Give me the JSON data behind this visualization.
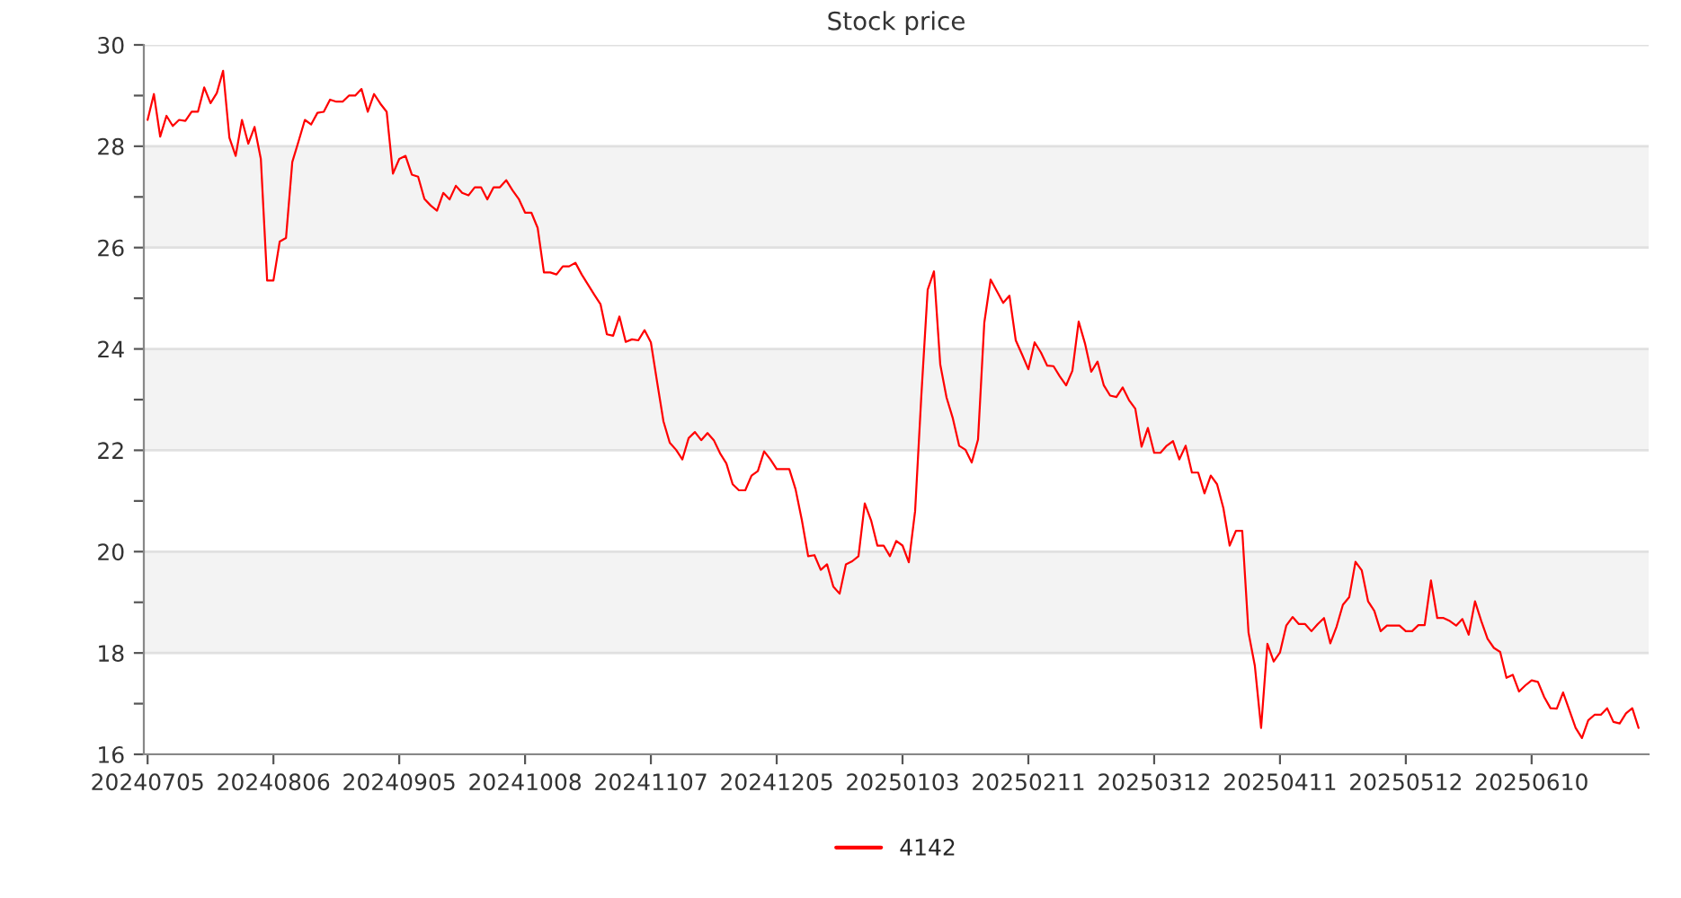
{
  "chart_data": {
    "type": "line",
    "title": "Stock price",
    "categories": [
      "20240705",
      null,
      null,
      null,
      null,
      null,
      null,
      null,
      null,
      null,
      null,
      null,
      null,
      null,
      null,
      null,
      null,
      null,
      null,
      null,
      "20240806",
      null,
      null,
      null,
      null,
      null,
      null,
      null,
      null,
      null,
      null,
      null,
      null,
      null,
      null,
      null,
      null,
      null,
      null,
      null,
      "20240905",
      null,
      null,
      null,
      null,
      null,
      null,
      null,
      null,
      null,
      null,
      null,
      null,
      null,
      null,
      null,
      null,
      null,
      null,
      null,
      "20241008",
      null,
      null,
      null,
      null,
      null,
      null,
      null,
      null,
      null,
      null,
      null,
      null,
      null,
      null,
      null,
      null,
      null,
      null,
      null,
      "20241107",
      null,
      null,
      null,
      null,
      null,
      null,
      null,
      null,
      null,
      null,
      null,
      null,
      null,
      null,
      null,
      null,
      null,
      null,
      null,
      "20241205",
      null,
      null,
      null,
      null,
      null,
      null,
      null,
      null,
      null,
      null,
      null,
      null,
      null,
      null,
      null,
      null,
      null,
      null,
      null,
      "20250103",
      null,
      null,
      null,
      null,
      null,
      null,
      null,
      null,
      null,
      null,
      null,
      null,
      null,
      null,
      null,
      null,
      null,
      null,
      null,
      "20250211",
      null,
      null,
      null,
      null,
      null,
      null,
      null,
      null,
      null,
      null,
      null,
      null,
      null,
      null,
      null,
      null,
      null,
      null,
      null,
      "20250312",
      null,
      null,
      null,
      null,
      null,
      null,
      null,
      null,
      null,
      null,
      null,
      null,
      null,
      null,
      null,
      null,
      null,
      null,
      null,
      "20250411",
      null,
      null,
      null,
      null,
      null,
      null,
      null,
      null,
      null,
      null,
      null,
      null,
      null,
      null,
      null,
      null,
      null,
      null,
      null,
      "20250512",
      null,
      null,
      null,
      null,
      null,
      null,
      null,
      null,
      null,
      null,
      null,
      null,
      null,
      null,
      null,
      null,
      null,
      null,
      null,
      "20250610",
      null,
      null,
      null,
      null,
      null,
      null,
      null,
      null,
      null,
      null,
      null,
      null,
      null,
      null,
      null,
      null,
      null
    ],
    "series": [
      {
        "name": "4142",
        "color": "#ff0000",
        "values": [
          28.52,
          29.03,
          28.19,
          28.6,
          28.4,
          28.52,
          28.5,
          28.68,
          28.68,
          29.16,
          28.85,
          29.05,
          29.49,
          28.17,
          27.81,
          28.52,
          28.05,
          28.38,
          27.75,
          25.35,
          25.35,
          26.12,
          26.19,
          27.69,
          28.1,
          28.52,
          28.43,
          28.66,
          28.68,
          28.92,
          28.88,
          28.88,
          29.0,
          29.0,
          29.13,
          28.68,
          29.03,
          28.84,
          28.68,
          27.46,
          27.75,
          27.81,
          27.44,
          27.4,
          26.96,
          26.83,
          26.73,
          27.08,
          26.95,
          27.22,
          27.08,
          27.03,
          27.19,
          27.19,
          26.95,
          27.19,
          27.19,
          27.33,
          27.13,
          26.96,
          26.69,
          26.69,
          26.39,
          25.51,
          25.51,
          25.47,
          25.63,
          25.63,
          25.7,
          25.47,
          25.27,
          25.07,
          24.88,
          24.29,
          24.26,
          24.64,
          24.14,
          24.19,
          24.17,
          24.37,
          24.13,
          23.34,
          22.57,
          22.15,
          22.01,
          21.82,
          22.24,
          22.36,
          22.2,
          22.34,
          22.2,
          21.94,
          21.74,
          21.33,
          21.21,
          21.21,
          21.5,
          21.59,
          21.98,
          21.82,
          21.63,
          21.63,
          21.63,
          21.23,
          20.62,
          19.91,
          19.93,
          19.64,
          19.75,
          19.31,
          19.17,
          19.75,
          19.81,
          19.91,
          20.95,
          20.62,
          20.12,
          20.12,
          19.91,
          20.21,
          20.12,
          19.79,
          20.8,
          23.1,
          25.17,
          25.53,
          23.69,
          23.04,
          22.63,
          22.09,
          22.01,
          21.76,
          22.21,
          24.52,
          25.37,
          25.14,
          24.91,
          25.05,
          24.17,
          23.89,
          23.6,
          24.13,
          23.93,
          23.67,
          23.66,
          23.46,
          23.28,
          23.57,
          24.54,
          24.11,
          23.55,
          23.75,
          23.28,
          23.08,
          23.05,
          23.24,
          22.99,
          22.82,
          22.07,
          22.44,
          21.95,
          21.95,
          22.09,
          22.18,
          21.82,
          22.09,
          21.56,
          21.56,
          21.15,
          21.5,
          21.33,
          20.86,
          20.12,
          20.41,
          20.41,
          18.4,
          17.75,
          16.52,
          18.18,
          17.83,
          18.01,
          18.54,
          18.71,
          18.57,
          18.57,
          18.43,
          18.57,
          18.69,
          18.19,
          18.52,
          18.95,
          19.1,
          19.8,
          19.63,
          19.02,
          18.83,
          18.43,
          18.54,
          18.54,
          18.54,
          18.43,
          18.43,
          18.55,
          18.55,
          19.43,
          18.69,
          18.69,
          18.63,
          18.54,
          18.67,
          18.36,
          19.02,
          18.63,
          18.28,
          18.1,
          18.02,
          17.51,
          17.57,
          17.24,
          17.36,
          17.46,
          17.43,
          17.13,
          16.91,
          16.9,
          17.22,
          16.87,
          16.52,
          16.32,
          16.67,
          16.78,
          16.78,
          16.91,
          16.64,
          16.61,
          16.81,
          16.91,
          16.52
        ]
      }
    ],
    "ylim": [
      16,
      30
    ],
    "yticks": [
      16,
      {
        "value": 17,
        "label": null
      },
      18,
      {
        "value": 19,
        "label": null
      },
      20,
      {
        "value": 21,
        "label": null
      },
      22,
      {
        "value": 23,
        "label": null
      },
      24,
      {
        "value": 25,
        "label": null
      },
      26,
      {
        "value": 27,
        "label": null
      },
      28,
      {
        "value": 29,
        "label": null
      },
      30
    ],
    "grid": "y",
    "legend": "bottom",
    "marker": "none",
    "line_style": "solid"
  }
}
